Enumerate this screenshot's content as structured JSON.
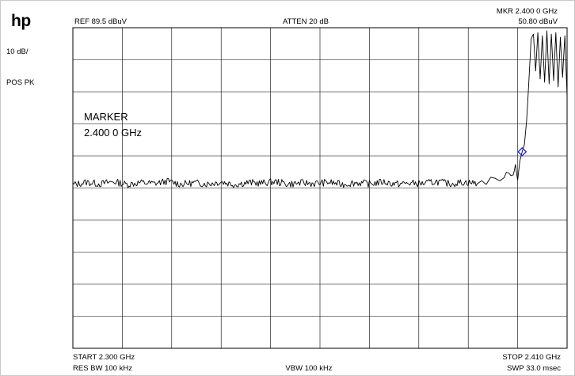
{
  "instrument": {
    "logo": "hp"
  },
  "settings": {
    "scale": "10 dB/",
    "detector": "POS PK",
    "ref_level": "REF  89.5 dBuV",
    "atten": "ATTEN 20 dB",
    "marker_freq": "MKR 2.400 0 GHz",
    "marker_ampl": "50.80 dBuV",
    "start": "START 2.300 GHz",
    "stop": "STOP 2.410 GHz",
    "res_bw": "RES BW 100 kHz",
    "vbw": "VBW 100 kHz",
    "sweep": "SWP 33.0 msec"
  },
  "marker_annotation": {
    "line1": "MARKER",
    "line2": "2.400 0 GHz"
  },
  "chart_data": {
    "type": "line",
    "x_unit": "GHz",
    "y_unit": "dBuV",
    "xlim": [
      2.3,
      2.41
    ],
    "ylim": [
      -10.5,
      89.5
    ],
    "grid": true,
    "trace_color": "#000000",
    "marker_color": "#1a1aff",
    "marker": {
      "x": 2.4,
      "y": 50.8
    },
    "series": [
      {
        "x": [
          2.3,
          2.303,
          2.306,
          2.309,
          2.312,
          2.315,
          2.318,
          2.321,
          2.324,
          2.327,
          2.33,
          2.333,
          2.336,
          2.339,
          2.342,
          2.345,
          2.348,
          2.351,
          2.354,
          2.357,
          2.36,
          2.363,
          2.366,
          2.369,
          2.372,
          2.375,
          2.378,
          2.381,
          2.384,
          2.387,
          2.39,
          2.392,
          2.394,
          2.396,
          2.397,
          2.398,
          2.3985,
          2.399,
          2.3995,
          2.4,
          2.4005,
          2.401,
          2.4015,
          2.402,
          2.4025,
          2.403,
          2.4035,
          2.404,
          2.4045,
          2.405,
          2.4055,
          2.406,
          2.4065,
          2.407,
          2.4075,
          2.408,
          2.4085,
          2.409,
          2.4095,
          2.41
        ],
        "y": [
          40.5,
          41.3,
          40.8,
          41.5,
          40.6,
          41.2,
          40.9,
          41.6,
          40.7,
          41.1,
          40.8,
          41.4,
          40.6,
          41.2,
          41.0,
          41.5,
          40.7,
          41.1,
          40.9,
          41.3,
          40.6,
          41.2,
          40.8,
          41.4,
          40.7,
          41.0,
          40.9,
          41.5,
          40.8,
          41.3,
          41.0,
          41.6,
          42.2,
          43.0,
          43.8,
          44.5,
          46.5,
          42.0,
          48.0,
          50.8,
          53.0,
          60.5,
          73.0,
          86.0,
          87.5,
          76.0,
          88.0,
          73.5,
          87.0,
          72.5,
          88.5,
          72.0,
          87.5,
          73.0,
          88.0,
          71.0,
          86.5,
          74.0,
          87.0,
          68.0
        ]
      }
    ]
  }
}
